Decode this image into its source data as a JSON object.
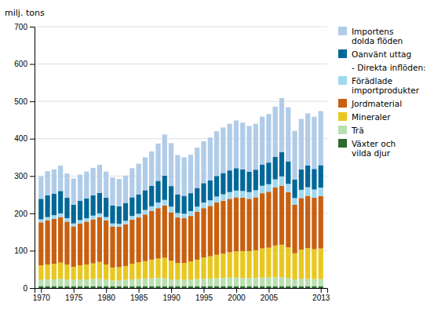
{
  "chart_data": {
    "type": "bar",
    "stacked": true,
    "y_label": "milj. tons",
    "x": [
      1970,
      1971,
      1972,
      1973,
      1974,
      1975,
      1976,
      1977,
      1978,
      1979,
      1980,
      1981,
      1982,
      1983,
      1984,
      1985,
      1986,
      1987,
      1988,
      1989,
      1990,
      1991,
      1992,
      1993,
      1994,
      1995,
      1996,
      1997,
      1998,
      1999,
      2000,
      2001,
      2002,
      2003,
      2004,
      2005,
      2006,
      2007,
      2008,
      2009,
      2010,
      2011,
      2012,
      2013
    ],
    "series": [
      {
        "name": "Växter och\nvilda djur",
        "color": "#2d6a2d",
        "values": [
          5,
          5,
          5,
          5,
          5,
          5,
          5,
          5,
          5,
          5,
          5,
          5,
          5,
          5,
          5,
          5,
          5,
          5,
          5,
          5,
          5,
          5,
          5,
          5,
          5,
          5,
          5,
          5,
          5,
          5,
          5,
          5,
          5,
          5,
          5,
          5,
          5,
          5,
          5,
          5,
          5,
          5,
          5,
          5
        ]
      },
      {
        "name": "Trä",
        "color": "#b8e0b0",
        "values": [
          18,
          18,
          18,
          20,
          18,
          17,
          18,
          18,
          19,
          20,
          18,
          15,
          16,
          17,
          18,
          19,
          20,
          21,
          22,
          21,
          18,
          17,
          17,
          18,
          19,
          20,
          20,
          21,
          22,
          23,
          23,
          22,
          22,
          22,
          23,
          23,
          24,
          24,
          22,
          18,
          20,
          20,
          19,
          19
        ]
      },
      {
        "name": "Mineraler",
        "color": "#e8c820",
        "values": [
          38,
          40,
          42,
          43,
          40,
          35,
          38,
          40,
          42,
          45,
          40,
          35,
          35,
          37,
          42,
          45,
          47,
          50,
          52,
          55,
          50,
          45,
          45,
          48,
          52,
          57,
          60,
          63,
          65,
          68,
          70,
          72,
          72,
          74,
          78,
          80,
          85,
          87,
          82,
          70,
          78,
          82,
          80,
          82
        ]
      },
      {
        "name": "Jordmaterial",
        "color": "#c86010",
        "values": [
          115,
          118,
          120,
          122,
          115,
          108,
          112,
          115,
          118,
          120,
          118,
          110,
          108,
          112,
          118,
          120,
          125,
          130,
          135,
          140,
          130,
          122,
          120,
          122,
          128,
          132,
          135,
          140,
          142,
          143,
          145,
          143,
          140,
          142,
          148,
          150,
          155,
          158,
          148,
          130,
          138,
          140,
          138,
          140
        ]
      },
      {
        "name": "Förädlade\nimportprodukter",
        "color": "#a0d8f0",
        "values": [
          8,
          9,
          10,
          10,
          9,
          8,
          9,
          9,
          10,
          10,
          9,
          8,
          8,
          9,
          10,
          10,
          12,
          13,
          15,
          15,
          15,
          12,
          12,
          13,
          14,
          15,
          15,
          16,
          17,
          18,
          18,
          18,
          18,
          19,
          20,
          20,
          22,
          25,
          22,
          18,
          22,
          23,
          22,
          23
        ]
      },
      {
        "name": "Oanvänt uttag",
        "color": "#006898",
        "values": [
          55,
          58,
          58,
          60,
          55,
          50,
          52,
          53,
          54,
          55,
          52,
          48,
          47,
          48,
          50,
          52,
          53,
          55,
          58,
          65,
          55,
          50,
          48,
          48,
          50,
          52,
          53,
          55,
          57,
          58,
          60,
          58,
          55,
          55,
          57,
          58,
          60,
          65,
          60,
          50,
          55,
          58,
          55,
          60
        ]
      },
      {
        "name": "Importens\ndolda flöden",
        "color": "#b0cce8",
        "values": [
          60,
          65,
          65,
          68,
          65,
          70,
          70,
          72,
          74,
          75,
          70,
          75,
          73,
          73,
          78,
          82,
          88,
          92,
          100,
          110,
          115,
          105,
          103,
          103,
          108,
          112,
          115,
          120,
          122,
          125,
          128,
          125,
          122,
          123,
          128,
          130,
          135,
          145,
          145,
          130,
          135,
          140,
          140,
          145
        ]
      }
    ],
    "annotations": [
      "- Direkta inflöden:"
    ],
    "xlim": [
      1969,
      2014
    ],
    "xticks": [
      1970,
      1975,
      1980,
      1985,
      1990,
      1995,
      2000,
      2005,
      2013
    ],
    "ylim": [
      0,
      700
    ],
    "yticks": [
      0,
      100,
      200,
      300,
      400,
      500,
      600,
      700
    ],
    "grid": true,
    "legend": "right"
  }
}
